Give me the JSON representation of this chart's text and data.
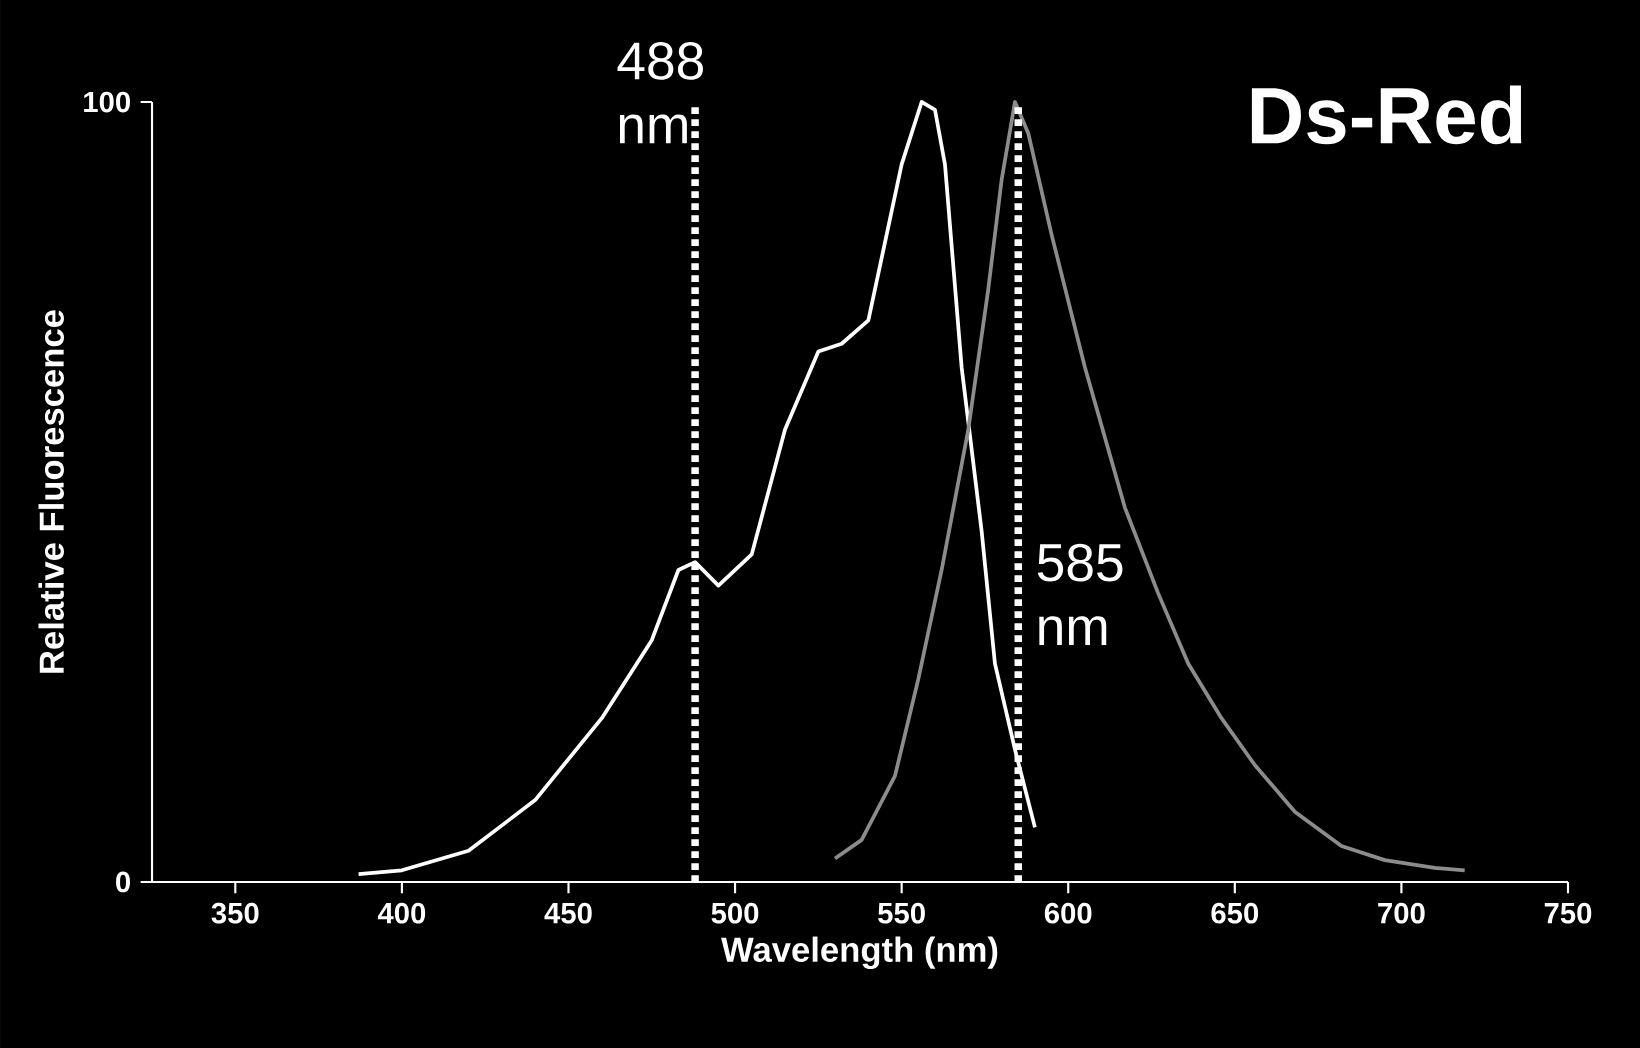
{
  "chart_data": {
    "type": "line",
    "title": "Ds-Red",
    "xlabel": "Wavelength (nm)",
    "ylabel": "Relative Fluorescence",
    "xlim": [
      325,
      750
    ],
    "ylim": [
      0,
      100
    ],
    "xticks": [
      350,
      400,
      450,
      500,
      550,
      600,
      650,
      700,
      750
    ],
    "yticks": [
      0,
      100
    ],
    "grid": false,
    "line_style": "solid",
    "marker": "none",
    "series": [
      {
        "color": "#ffffff",
        "x": [
          387,
          400,
          420,
          440,
          460,
          475,
          483,
          488,
          495,
          505,
          515,
          525,
          532,
          540,
          550,
          556,
          560,
          563,
          568,
          574,
          578,
          584,
          590
        ],
        "values": [
          1,
          1.5,
          4,
          10.5,
          21,
          31,
          40,
          41,
          38,
          42,
          58,
          68,
          69,
          72,
          92,
          100,
          99,
          92,
          66,
          45,
          28,
          17,
          7
        ]
      },
      {
        "color": "#8c8c8c",
        "x": [
          530,
          538,
          548,
          555,
          562,
          570,
          576,
          580,
          584,
          588,
          595,
          605,
          617,
          627,
          636,
          646,
          656,
          668,
          682,
          695,
          710,
          719
        ],
        "values": [
          3,
          5.4,
          13.6,
          26,
          40,
          58,
          76,
          90,
          100,
          96,
          83,
          66,
          48,
          37,
          28,
          21,
          15,
          9,
          4.6,
          2.8,
          1.8,
          1.5
        ]
      }
    ],
    "ref_lines": [
      {
        "axis": "x",
        "value": 488,
        "label": "488 nm",
        "color": "#ffffff",
        "line_style": "dotted"
      },
      {
        "axis": "x",
        "value": 585,
        "label": "585 nm",
        "color": "#ffffff",
        "line_style": "dotted"
      }
    ]
  }
}
